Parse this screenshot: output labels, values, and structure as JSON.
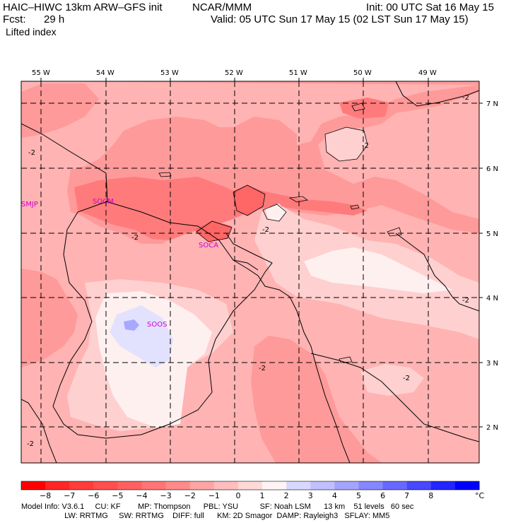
{
  "header": {
    "model": "HAIC–HIWC 13km ARW–GFS init",
    "agency": "NCAR/MMM",
    "init": "Init: 00 UTC Sat 16 May 15",
    "fcst_label": "Fcst:",
    "fcst_value": "29 h",
    "valid": "Valid: 05 UTC Sun 17 May 15 (02 LST Sun 17 May 15)",
    "field": "Lifted index"
  },
  "map": {
    "lon_labels": [
      "55 W",
      "54 W",
      "53 W",
      "52 W",
      "51 W",
      "50 W",
      "49 W"
    ],
    "lat_labels": [
      "7 N",
      "6 N",
      "5 N",
      "4 N",
      "3 N",
      "2 N"
    ],
    "stations": [
      "SMJP",
      "SOCM",
      "SOCA",
      "SOOS"
    ],
    "contour_label": "-2",
    "colors": {
      "m8": "#ff0000",
      "m7": "#ff2626",
      "m6": "#ff4a4a",
      "m5": "#ff6666",
      "m4": "#ff7b7b",
      "m3": "#ff9a9a",
      "m2": "#ffb3b3",
      "m1": "#ffd0d0",
      "p0": "#fff0f0",
      "p1": "#e2e2ff",
      "p2": "#c8c8ff",
      "p3": "#a8a8ff",
      "p4": "#8a8aff",
      "p5": "#6a6aff",
      "p6": "#4a4aff",
      "p7": "#2424ff",
      "p8": "#0000ff"
    }
  },
  "colorbar": {
    "ticks": [
      "−8",
      "−7",
      "−6",
      "−5",
      "−4",
      "−3",
      "−2",
      "−1",
      "0",
      "1",
      "2",
      "3",
      "4",
      "5",
      "6",
      "7",
      "8"
    ],
    "unit": "°C",
    "colors": [
      "#ff0000",
      "#ff2626",
      "#ff3c3c",
      "#ff4e4e",
      "#ff6060",
      "#ff7474",
      "#ff8a8a",
      "#ffa4a4",
      "#ffbdbd",
      "#ffd8d8",
      "#fff3f3",
      "#d8d8ff",
      "#c0c0ff",
      "#a4a4ff",
      "#8686ff",
      "#6868ff",
      "#4848ff",
      "#2424ff",
      "#0000ff"
    ]
  },
  "footer": {
    "line1": "Model Info: V3.6.1     CU: KF        MP: Thompson      PBL: YSU          SF: Noah LSM      13 km    51 levels   60 sec",
    "line2": "                    LW: RRTMG     SW: RRTMG    DIFF: full      KM: 2D Smagor  DAMP: Rayleigh3   SFLAY: MM5"
  }
}
